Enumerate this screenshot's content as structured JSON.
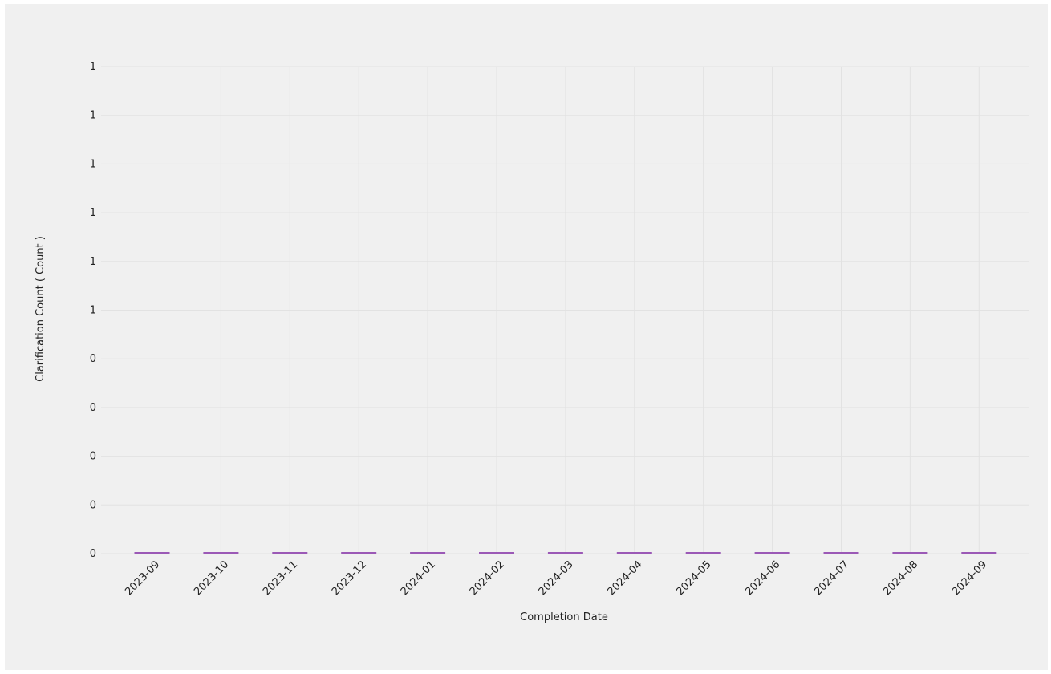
{
  "chart_data": {
    "type": "bar",
    "xlabel": "Completion Date",
    "ylabel": "Clarification Count ( Count )",
    "categories": [
      "2023-09",
      "2023-10",
      "2023-11",
      "2023-12",
      "2024-01",
      "2024-02",
      "2024-03",
      "2024-04",
      "2024-05",
      "2024-06",
      "2024-07",
      "2024-08",
      "2024-09"
    ],
    "values": [
      0,
      0,
      0,
      0,
      0,
      0,
      0,
      0,
      0,
      0,
      0,
      0,
      0
    ],
    "y_tick_labels": [
      "0",
      "0",
      "0",
      "0",
      "0",
      "1",
      "1",
      "1",
      "1",
      "1",
      "1"
    ],
    "ylim": [
      0,
      1
    ],
    "grid": true,
    "bar_color": "#9b59b6",
    "grid_color": "#e2e2e2",
    "background_color": "#f0f0f0"
  }
}
